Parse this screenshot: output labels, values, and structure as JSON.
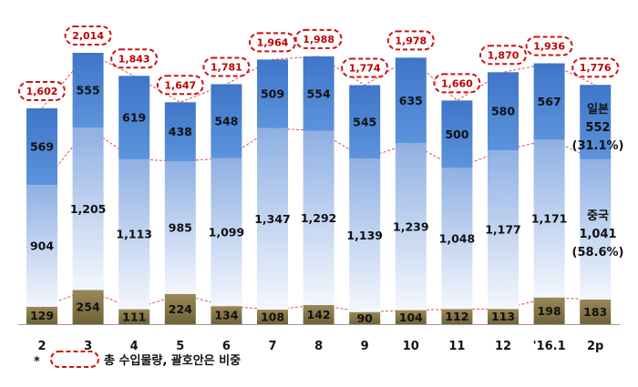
{
  "chart_data": {
    "type": "bar",
    "stacked": true,
    "categories": [
      "2",
      "3",
      "4",
      "5",
      "6",
      "7",
      "8",
      "9",
      "10",
      "11",
      "12",
      "'16.1",
      "2p"
    ],
    "series": [
      {
        "key": "bottom",
        "values": [
          129,
          254,
          111,
          224,
          134,
          108,
          142,
          90,
          104,
          112,
          113,
          198,
          183
        ],
        "color": "#8b7a4a"
      },
      {
        "key": "middle",
        "name": "중국",
        "values": [
          904,
          1205,
          1113,
          985,
          1099,
          1347,
          1292,
          1139,
          1239,
          1048,
          1177,
          1171,
          1041
        ],
        "color": "#a9c1e8"
      },
      {
        "key": "top",
        "name": "일본",
        "values": [
          569,
          555,
          619,
          438,
          548,
          509,
          554,
          545,
          635,
          500,
          580,
          567,
          552
        ],
        "color": "#4d82cf"
      }
    ],
    "totals": [
      1602,
      2014,
      1843,
      1647,
      1781,
      1964,
      1988,
      1774,
      1978,
      1660,
      1870,
      1936,
      1776
    ],
    "total_border_color": "#cc1111",
    "trend_line_color": "#e05050",
    "last_bar_notes": {
      "top_name": "일본",
      "top_value": "552",
      "top_share": "(31.1%)",
      "middle_name": "중국",
      "middle_value": "1,041",
      "middle_share": "(58.6%)"
    },
    "legend": {
      "marker": "*",
      "text": "총 수입물량, 괄호안은 비중"
    },
    "ylim": [
      0,
      2100
    ],
    "grid": false
  }
}
